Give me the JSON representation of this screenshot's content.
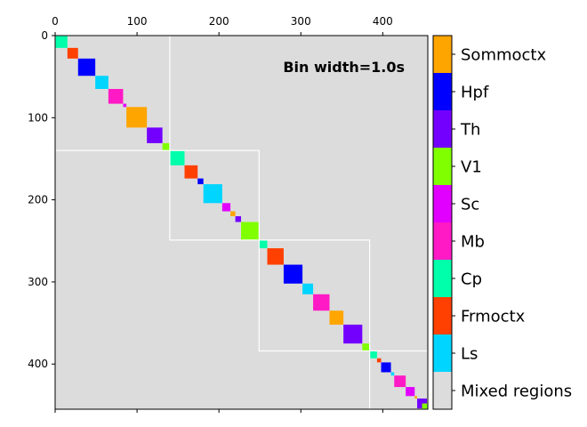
{
  "chart_data": {
    "type": "heatmap",
    "annotation": "Bin width=1.0s",
    "matrix_size": 455,
    "xlim": [
      0,
      455
    ],
    "ylim": [
      455,
      0
    ],
    "x_ticks": [
      0,
      100,
      200,
      300,
      400
    ],
    "y_ticks": [
      0,
      100,
      200,
      300,
      400
    ],
    "background_label": "Mixed regions",
    "background_color": "#dcdcdc",
    "categories": [
      {
        "name": "Sommoctx",
        "color": "#ffa500"
      },
      {
        "name": "Hpf",
        "color": "#0000ff"
      },
      {
        "name": "Th",
        "color": "#7300ff"
      },
      {
        "name": "V1",
        "color": "#80ff00"
      },
      {
        "name": "Sc",
        "color": "#e100ff"
      },
      {
        "name": "Mb",
        "color": "#ff1ac6"
      },
      {
        "name": "Cp",
        "color": "#00ffaa"
      },
      {
        "name": "Frmoctx",
        "color": "#ff4000"
      },
      {
        "name": "Ls",
        "color": "#00d5ff"
      }
    ],
    "blocks": [
      {
        "start": 0,
        "end": 15,
        "region": "Cp"
      },
      {
        "start": 15,
        "end": 28,
        "region": "Frmoctx"
      },
      {
        "start": 28,
        "end": 49,
        "region": "Hpf"
      },
      {
        "start": 49,
        "end": 65,
        "region": "Ls"
      },
      {
        "start": 65,
        "end": 83,
        "region": "Mb"
      },
      {
        "start": 83,
        "end": 87,
        "region": "Sc"
      },
      {
        "start": 87,
        "end": 112,
        "region": "Sommoctx"
      },
      {
        "start": 112,
        "end": 131,
        "region": "Th"
      },
      {
        "start": 131,
        "end": 140,
        "region": "V1"
      },
      {
        "start": 140,
        "end": 158,
        "region": "Cp"
      },
      {
        "start": 158,
        "end": 174,
        "region": "Frmoctx"
      },
      {
        "start": 174,
        "end": 181,
        "region": "Hpf"
      },
      {
        "start": 181,
        "end": 204,
        "region": "Ls"
      },
      {
        "start": 204,
        "end": 214,
        "region": "Sc"
      },
      {
        "start": 214,
        "end": 220,
        "region": "Sommoctx"
      },
      {
        "start": 220,
        "end": 227,
        "region": "Th"
      },
      {
        "start": 227,
        "end": 249,
        "region": "V1"
      },
      {
        "start": 249,
        "end": 259,
        "region": "Cp"
      },
      {
        "start": 259,
        "end": 279,
        "region": "Frmoctx"
      },
      {
        "start": 279,
        "end": 302,
        "region": "Hpf"
      },
      {
        "start": 302,
        "end": 315,
        "region": "Ls"
      },
      {
        "start": 315,
        "end": 335,
        "region": "Mb"
      },
      {
        "start": 335,
        "end": 352,
        "region": "Sommoctx"
      },
      {
        "start": 352,
        "end": 375,
        "region": "Th"
      },
      {
        "start": 375,
        "end": 384,
        "region": "V1"
      },
      {
        "start": 384,
        "end": 393,
        "region": "Cp"
      },
      {
        "start": 393,
        "end": 398,
        "region": "Frmoctx"
      },
      {
        "start": 398,
        "end": 410,
        "region": "Hpf"
      },
      {
        "start": 410,
        "end": 414,
        "region": "Ls"
      },
      {
        "start": 414,
        "end": 428,
        "region": "Mb"
      },
      {
        "start": 428,
        "end": 439,
        "region": "Sc"
      },
      {
        "start": 439,
        "end": 442,
        "region": "Sommoctx"
      },
      {
        "start": 442,
        "end": 454,
        "region": "Th"
      },
      {
        "start": 448,
        "end": 455,
        "region": "V1"
      }
    ],
    "session_boxes": [
      {
        "start": 0,
        "end": 140
      },
      {
        "start": 140,
        "end": 249
      },
      {
        "start": 249,
        "end": 384
      },
      {
        "start": 384,
        "end": 455
      }
    ],
    "session_line_color": "#ffffff"
  }
}
